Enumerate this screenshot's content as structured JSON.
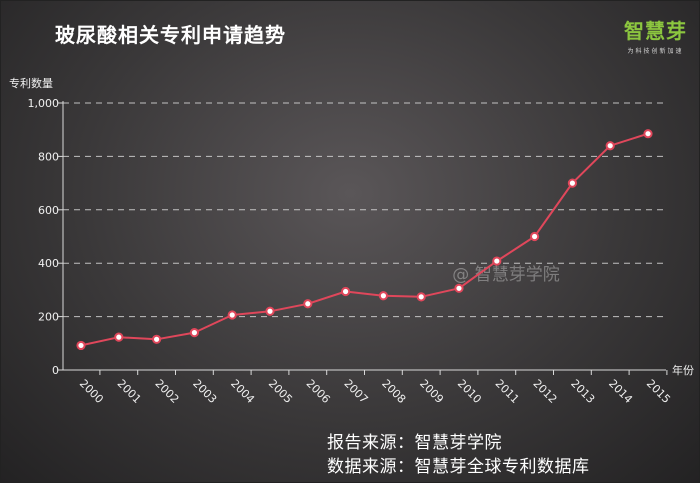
{
  "header": {
    "title": "玻尿酸相关专利申请趋势",
    "brand_name": "智慧芽",
    "brand_tagline": "为科技创新加速"
  },
  "watermark": "@ 智慧芽学院",
  "footer": {
    "report_source": "报告来源：智慧芽学院",
    "data_source": "数据来源：智慧芽全球专利数据库"
  },
  "colors": {
    "line": "#e0475b",
    "grid": "#d9d9d9"
  },
  "chart_data": {
    "type": "line",
    "ylabel": "专利数量",
    "xlabel": "年份",
    "categories": [
      "2000",
      "2001",
      "2002",
      "2003",
      "2004",
      "2005",
      "2006",
      "2007",
      "2008",
      "2009",
      "2010",
      "2011",
      "2012",
      "2013",
      "2014",
      "2015"
    ],
    "values": [
      92,
      123,
      115,
      140,
      206,
      220,
      248,
      294,
      278,
      274,
      306,
      408,
      500,
      700,
      840,
      885
    ],
    "ylim": [
      0,
      1000
    ],
    "yticks": [
      0,
      200,
      400,
      600,
      800,
      1000
    ],
    "ytick_labels": [
      "0",
      "200",
      "400",
      "600",
      "800",
      "1,000"
    ],
    "grid": "horizontal dashed"
  }
}
